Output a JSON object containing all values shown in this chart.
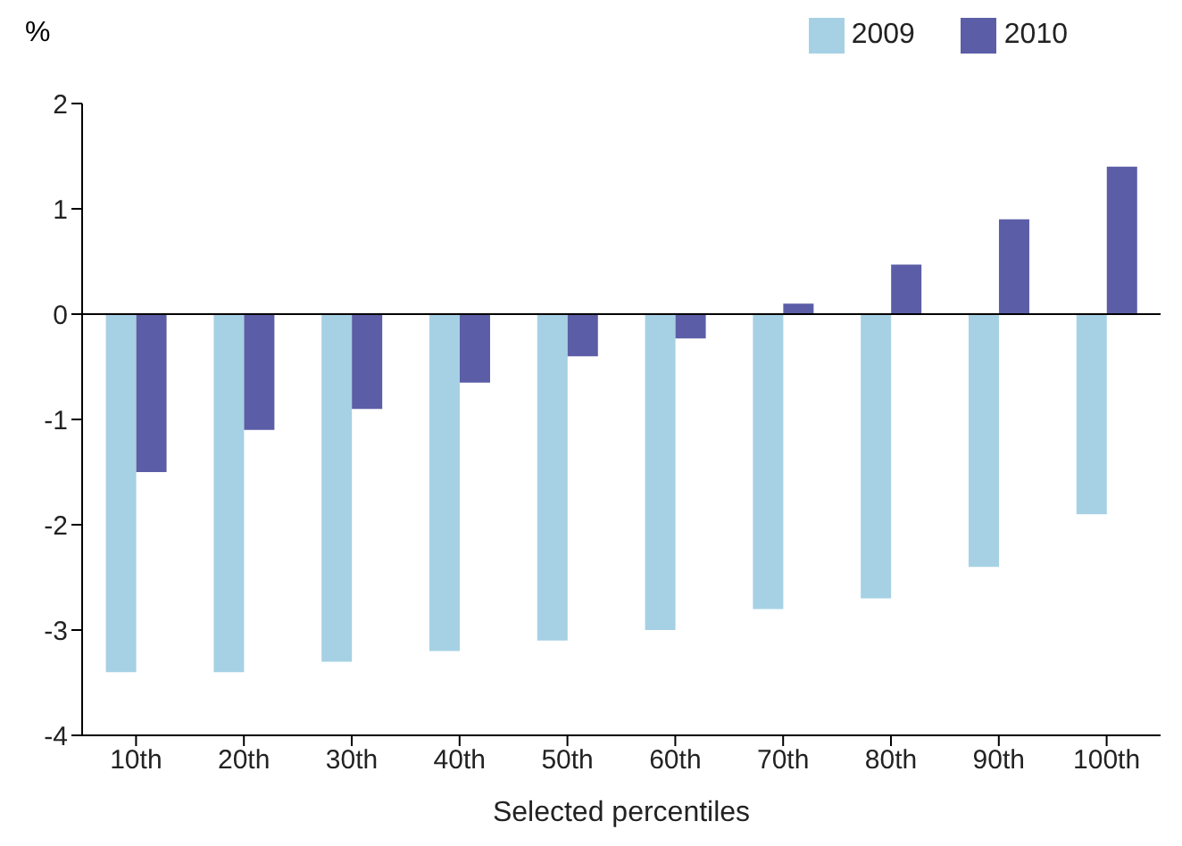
{
  "chart_data": {
    "type": "bar",
    "ylabel": "%",
    "xlabel": "Selected percentiles",
    "categories": [
      "10th",
      "20th",
      "30th",
      "40th",
      "50th",
      "60th",
      "70th",
      "80th",
      "90th",
      "100th"
    ],
    "series": [
      {
        "name": "2009",
        "color": "#a6d1e4",
        "values": [
          -3.4,
          -3.4,
          -3.3,
          -3.2,
          -3.1,
          -3.0,
          -2.8,
          -2.7,
          -2.4,
          -1.9
        ]
      },
      {
        "name": "2010",
        "color": "#5b5ea6",
        "values": [
          -1.5,
          -1.1,
          -0.9,
          -0.65,
          -0.4,
          -0.23,
          0.1,
          0.47,
          0.9,
          1.4
        ]
      }
    ],
    "ylim": [
      -4,
      2
    ],
    "yticks": [
      -4,
      -3,
      -2,
      -1,
      0,
      1,
      2
    ],
    "grid": false,
    "legend": "top right",
    "ref_lines": [
      {
        "axis": "y",
        "value": 0,
        "color": "#000000"
      }
    ]
  }
}
